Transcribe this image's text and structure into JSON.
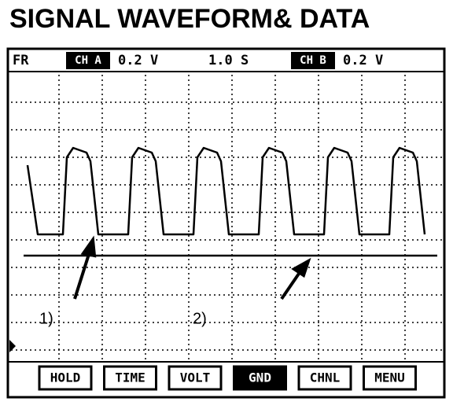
{
  "header": {
    "title": "SIGNAL WAVEFORM& DATA"
  },
  "status_bar": {
    "mode": "FR",
    "channel_a": "CH A",
    "channel_a_scale": "0.2 V",
    "timebase": "1.0 S",
    "channel_b": "CH B",
    "channel_b_scale": "0.2 V"
  },
  "annotations": [
    "1)",
    "2)"
  ],
  "buttons": [
    "HOLD",
    "TIME",
    "VOLT",
    "GND",
    "CHNL",
    "MENU"
  ]
}
